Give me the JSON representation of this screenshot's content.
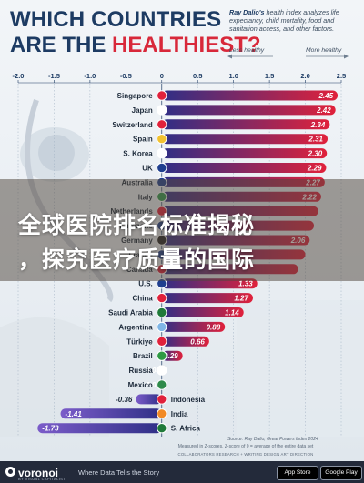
{
  "header": {
    "title_line1": "WHICH COUNTRIES",
    "title_line2_prefix": "ARE THE ",
    "title_line2_highlight": "HEALTHIEST?",
    "description_bold": "Ray Dalio's",
    "description": "health index analyzes life expectancy, child mortality, food and sanitation access, and other factors.",
    "legend_left": "Less healthy",
    "legend_right": "More healthy"
  },
  "overlay": {
    "line1": "全球医院排名标准揭秘",
    "line2": "，探究医疗质量的国际"
  },
  "footer": {
    "source": "Source: Ray Dalio, Great Powers Index 2024",
    "measured": "Measured in Z-scores. Z-score of 0 = average of the entire data set",
    "collab": "COLLABORATORS  RESEARCH + WRITING  DESIGN  ART DIRECTION",
    "brand": "voronoi",
    "brand_sub": "BY VISUAL CAPITALIST",
    "tagline": "Where Data Tells the Story",
    "store1": "App Store",
    "store2": "Google Play"
  },
  "colors": {
    "positive_start": "#2f2f86",
    "positive_end": "#e0213b",
    "negative_start": "#2f2f86",
    "negative_end": "#7b5cc9",
    "title": "#1d3b63",
    "accent": "#d8283a"
  },
  "chart_data": {
    "type": "bar",
    "orientation": "horizontal",
    "xlim": [
      -2.0,
      2.5
    ],
    "xticks": [
      "-2.0",
      "-1.5",
      "-1.0",
      "-0.5",
      "0",
      "0.5",
      "1.0",
      "1.5",
      "2.0",
      "2.5"
    ],
    "grid": true,
    "categories": [
      "Singapore",
      "Japan",
      "Switzerland",
      "Spain",
      "S. Korea",
      "UK",
      "Australia",
      "Italy",
      "Netherlands",
      "Eurozone",
      "Germany",
      "France",
      "Canada",
      "U.S.",
      "China",
      "Saudi Arabia",
      "Argentina",
      "Türkiye",
      "Brazil",
      "Russia",
      "Mexico",
      "Indonesia",
      "India",
      "S. Africa"
    ],
    "labels": [
      "2.45",
      "2.42",
      "2.34",
      "2.31",
      "2.30",
      "2.29",
      "2.27",
      "2.22",
      "",
      "",
      "2.06",
      "",
      "",
      "1.33",
      "1.27",
      "1.14",
      "0.88",
      "0.66",
      "0.29",
      "0.04",
      "0.04",
      "-0.36",
      "-1.41",
      "-1.73"
    ],
    "values": [
      2.45,
      2.42,
      2.34,
      2.31,
      2.3,
      2.29,
      2.27,
      2.22,
      2.18,
      2.12,
      2.06,
      2.0,
      1.9,
      1.33,
      1.27,
      1.14,
      0.88,
      0.66,
      0.29,
      0.04,
      0.04,
      -0.36,
      -1.41,
      -1.73
    ],
    "flag_colors": [
      "#e0213b",
      "#ffffff",
      "#e0213b",
      "#f2c230",
      "#ffffff",
      "#1f3f8f",
      "#1f3f8f",
      "#2e9a4b",
      "#e0213b",
      "#1f3f8f",
      "#222222",
      "#1f3f8f",
      "#e0213b",
      "#1f3f8f",
      "#e0213b",
      "#1f7a3a",
      "#7fb6e6",
      "#e0213b",
      "#2f9a44",
      "#ffffff",
      "#2f8a4a",
      "#e0213b",
      "#f28a25",
      "#1f7a3a"
    ]
  }
}
